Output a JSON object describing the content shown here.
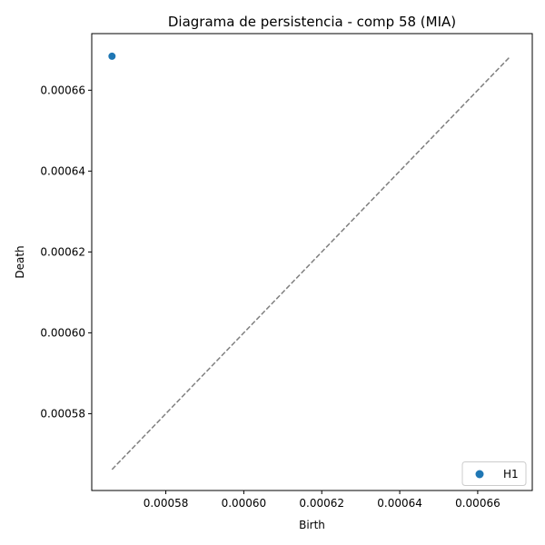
{
  "chart_data": {
    "type": "scatter",
    "title": "Diagrama de persistencia - comp 58 (MIA)",
    "xlabel": "Birth",
    "ylabel": "Death",
    "xlim": [
      0.000561,
      0.000674
    ],
    "ylim": [
      0.000561,
      0.000674
    ],
    "x_ticks": [
      "0.00058",
      "0.00060",
      "0.00062",
      "0.00064",
      "0.00066"
    ],
    "x_tick_values": [
      0.00058,
      0.0006,
      0.00062,
      0.00064,
      0.00066
    ],
    "y_ticks": [
      "0.00058",
      "0.00060",
      "0.00062",
      "0.00064",
      "0.00066"
    ],
    "y_tick_values": [
      0.00058,
      0.0006,
      0.00062,
      0.00064,
      0.00066
    ],
    "diagonal": {
      "from": 0.0005662,
      "to": 0.0006684,
      "style": "dashed",
      "color": "#7f7f7f"
    },
    "series": [
      {
        "name": "H1",
        "color": "#1f77b4",
        "points": [
          {
            "x": 0.0005662,
            "y": 0.0006684
          }
        ]
      }
    ],
    "legend": {
      "position": "bottom-right"
    },
    "grid": false
  }
}
